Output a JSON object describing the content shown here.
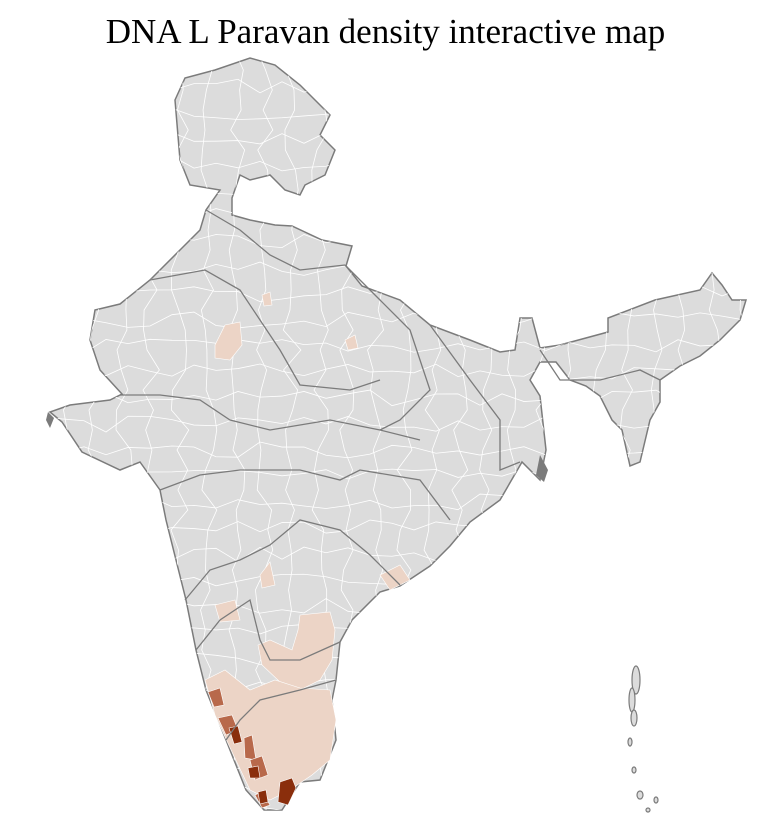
{
  "title": "DNA L Paravan density interactive map",
  "colors": {
    "background": "#ffffff",
    "no_data": "#dcdcdc",
    "state_border": "#7b7b7b",
    "district_border": "#ffffff",
    "low_density": "#ecd4c6",
    "medium_density": "#b8694b",
    "high_density": "#8a2e0c"
  }
}
